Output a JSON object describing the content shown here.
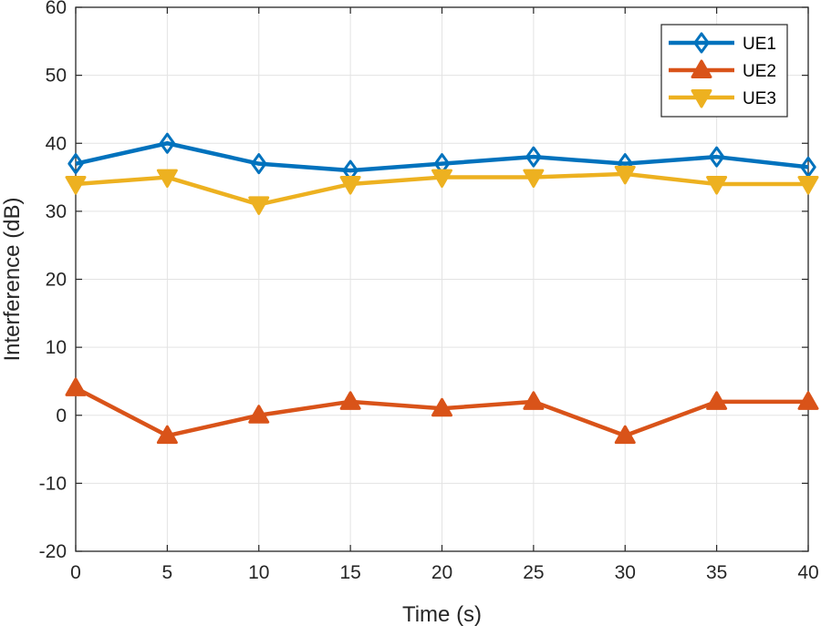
{
  "chart_data": {
    "type": "line",
    "title": "",
    "xlabel": "Time (s)",
    "ylabel": "Interference (dB)",
    "xlim": [
      0,
      40
    ],
    "ylim": [
      -20,
      60
    ],
    "xticks": [
      0,
      5,
      10,
      15,
      20,
      25,
      30,
      35,
      40
    ],
    "yticks": [
      -20,
      -10,
      0,
      10,
      20,
      30,
      40,
      50,
      60
    ],
    "xtick_labels": [
      "0",
      "5",
      "10",
      "15",
      "20",
      "25",
      "30",
      "35",
      "40"
    ],
    "ytick_labels": [
      "-20",
      "-10",
      "0",
      "10",
      "20",
      "30",
      "40",
      "50",
      "60"
    ],
    "grid": true,
    "legend_position": "top-right",
    "x": [
      0,
      5,
      10,
      15,
      20,
      25,
      30,
      35,
      40
    ],
    "series": [
      {
        "name": "UE1",
        "color": "#0072BD",
        "marker": "diamond",
        "values": [
          37,
          40,
          37,
          36,
          37,
          38,
          37,
          38,
          36.5
        ]
      },
      {
        "name": "UE2",
        "color": "#D95319",
        "marker": "triangle-up",
        "values": [
          4,
          -3,
          0,
          2,
          1,
          2,
          -3,
          2,
          2
        ]
      },
      {
        "name": "UE3",
        "color": "#EDB120",
        "marker": "triangle-down",
        "values": [
          34,
          35,
          31,
          34,
          35,
          35,
          35.5,
          34,
          34
        ]
      }
    ]
  }
}
